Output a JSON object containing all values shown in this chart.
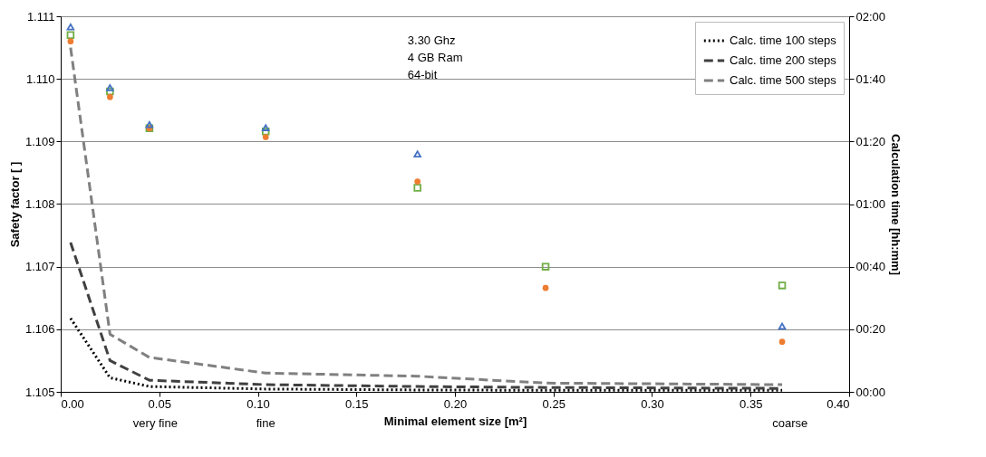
{
  "chart_data": {
    "type": "scatter",
    "xlabel": "Minimal element size [m²]",
    "ylabel": "Safety factor [ ]",
    "y2label": "Calculation time [hh:mm]",
    "x": [
      0.005,
      0.025,
      0.045,
      0.104,
      0.181,
      0.246,
      0.366
    ],
    "xlim": [
      0,
      0.4
    ],
    "xticks": [
      {
        "value": 0,
        "label": "0.00"
      },
      0.05,
      {
        "value": 0.1,
        "label": "0.10"
      },
      0.15,
      {
        "value": 0.2,
        "label": "0.20"
      },
      0.25,
      {
        "value": 0.3,
        "label": "0.30"
      },
      0.35,
      {
        "value": 0.4,
        "label": "0.40"
      }
    ],
    "ylim": [
      1.105,
      1.111
    ],
    "yticks": [
      1.105,
      1.106,
      1.107,
      1.108,
      1.109,
      {
        "value": 1.11,
        "label": "1.110"
      },
      1.111
    ],
    "y2lim": [
      0,
      120
    ],
    "y2ticks": [
      {
        "value": 0,
        "label": "00:00"
      },
      {
        "value": 20,
        "label": "00:20"
      },
      {
        "value": 40,
        "label": "00:40"
      },
      {
        "value": 60,
        "label": "01:00"
      },
      {
        "value": 80,
        "label": "01:20"
      },
      {
        "value": 100,
        "label": "01:40"
      },
      {
        "value": 120,
        "label": "02:00"
      }
    ],
    "grid": "y",
    "legend": "top right",
    "series": [
      {
        "marker": "triangle",
        "color": "#4472c4",
        "values": [
          1.11083,
          1.10986,
          1.10927,
          1.10922,
          1.1088,
          null,
          1.10605
        ]
      },
      {
        "marker": "circle",
        "color": "#ed7d31",
        "values": [
          1.1106,
          1.10971,
          1.10921,
          1.10907,
          1.10836,
          1.10666,
          1.1058
        ]
      },
      {
        "marker": "square",
        "color": "#70ad47",
        "values": [
          1.1107,
          1.1098,
          1.10921,
          1.10916,
          1.10826,
          1.107,
          1.1067
        ]
      },
      {
        "type": "line",
        "axis": "y2",
        "name": "Calc. time 100 steps",
        "color": "#000000",
        "line_style": "dotted",
        "values": [
          23.5,
          4.5,
          1.7,
          0.9,
          0.6,
          0.5,
          0.5
        ]
      },
      {
        "type": "line",
        "axis": "y2",
        "name": "Calc. time 200 steps",
        "color": "#404040",
        "line_style": "dashed",
        "values": [
          47.7,
          10,
          3.7,
          2.3,
          1.7,
          1.4,
          1.1
        ]
      },
      {
        "type": "line",
        "axis": "y2",
        "name": "Calc. time 500 steps",
        "color": "#808080",
        "line_style": "dashed",
        "values": [
          110,
          18.4,
          11,
          6,
          5,
          2.8,
          2.3
        ]
      }
    ],
    "annotations": [
      "3.30 Ghz\n4 GB Ram\n64-bit",
      "very fine",
      "fine",
      "coarse"
    ]
  }
}
